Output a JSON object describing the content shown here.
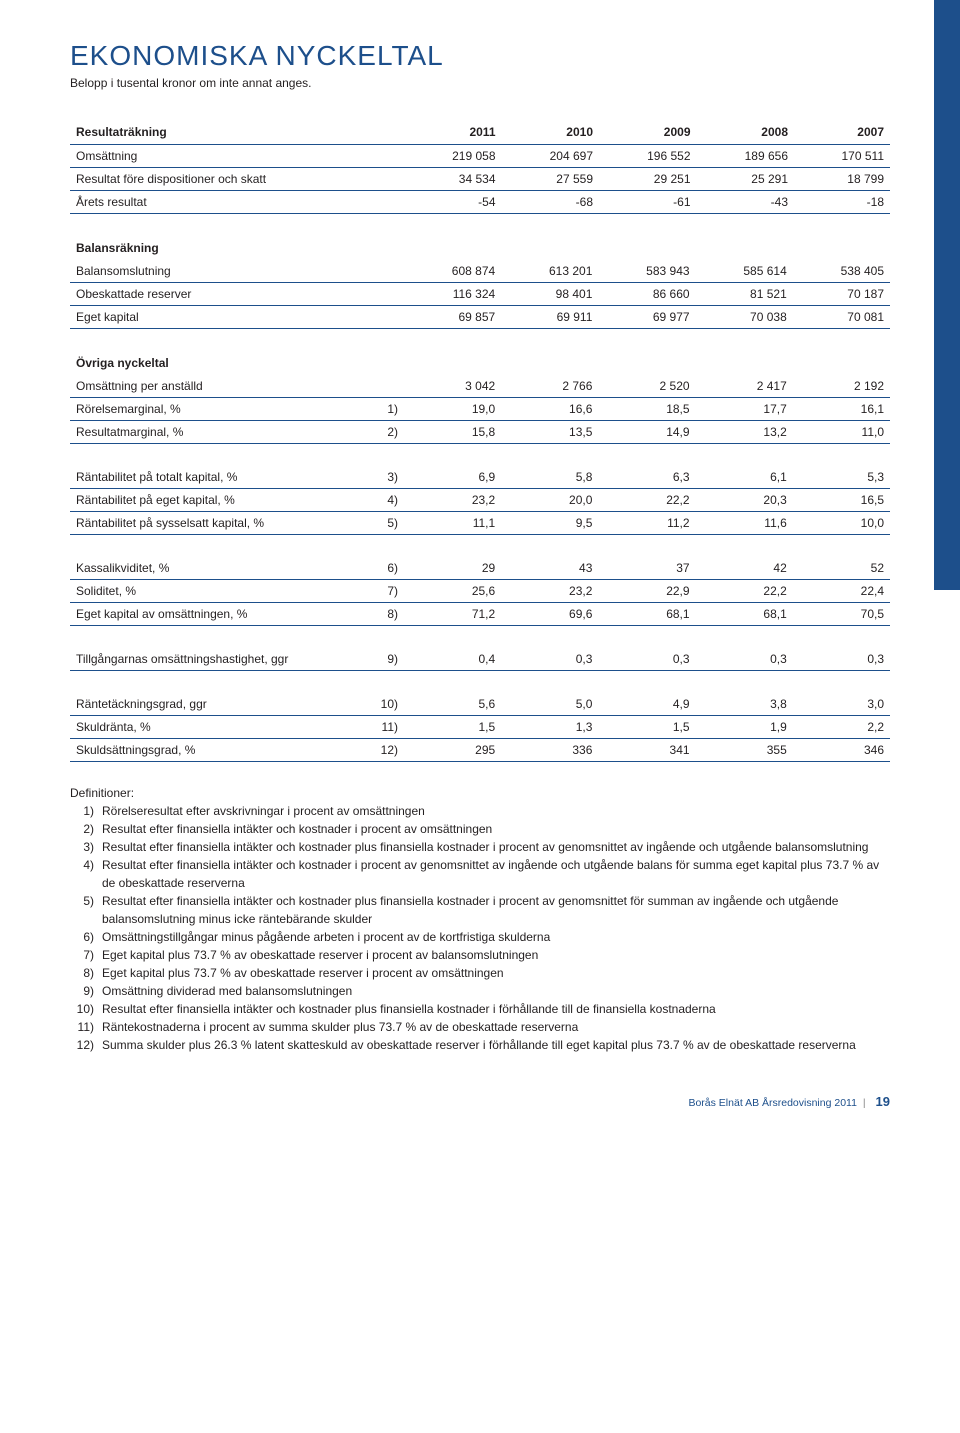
{
  "page": {
    "title": "EKONOMISKA NYCKELTAL",
    "subtitle": "Belopp i tusental kronor om inte annat anges."
  },
  "sections": {
    "resultatrakning": "Resultaträkning",
    "balansrakning": "Balansräkning",
    "ovriga": "Övriga nyckeltal"
  },
  "years": [
    "2011",
    "2010",
    "2009",
    "2008",
    "2007"
  ],
  "rows": {
    "oms": {
      "l": "Omsättning",
      "v": [
        "219 058",
        "204 697",
        "196 552",
        "189 656",
        "170 511"
      ]
    },
    "rfds": {
      "l": "Resultat före dispositioner och skatt",
      "v": [
        "34 534",
        "27 559",
        "29 251",
        "25 291",
        "18 799"
      ]
    },
    "arets": {
      "l": "Årets resultat",
      "v": [
        "-54",
        "-68",
        "-61",
        "-43",
        "-18"
      ]
    },
    "bslut": {
      "l": "Balansomslutning",
      "v": [
        "608 874",
        "613 201",
        "583 943",
        "585 614",
        "538 405"
      ]
    },
    "obres": {
      "l": "Obeskattade reserver",
      "v": [
        "116 324",
        "98 401",
        "86 660",
        "81 521",
        "70 187"
      ]
    },
    "egkap": {
      "l": "Eget kapital",
      "v": [
        "69 857",
        "69 911",
        "69 977",
        "70 038",
        "70 081"
      ]
    },
    "opa": {
      "l": "Omsättning per anställd",
      "v": [
        "3 042",
        "2 766",
        "2 520",
        "2 417",
        "2 192"
      ]
    },
    "rorm": {
      "l": "Rörelsemarginal, %",
      "n": "1)",
      "v": [
        "19,0",
        "16,6",
        "18,5",
        "17,7",
        "16,1"
      ]
    },
    "resm": {
      "l": "Resultatmarginal, %",
      "n": "2)",
      "v": [
        "15,8",
        "13,5",
        "14,9",
        "13,2",
        "11,0"
      ]
    },
    "rtot": {
      "l": "Räntabilitet på totalt kapital, %",
      "n": "3)",
      "v": [
        "6,9",
        "5,8",
        "6,3",
        "6,1",
        "5,3"
      ]
    },
    "reget": {
      "l": "Räntabilitet på eget kapital, %",
      "n": "4)",
      "v": [
        "23,2",
        "20,0",
        "22,2",
        "20,3",
        "16,5"
      ]
    },
    "rsys": {
      "l": "Räntabilitet på sysselsatt kapital, %",
      "n": "5)",
      "v": [
        "11,1",
        "9,5",
        "11,2",
        "11,6",
        "10,0"
      ]
    },
    "klik": {
      "l": "Kassalikviditet, %",
      "n": "6)",
      "v": [
        "29",
        "43",
        "37",
        "42",
        "52"
      ]
    },
    "sol": {
      "l": "Soliditet, %",
      "n": "7)",
      "v": [
        "25,6",
        "23,2",
        "22,9",
        "22,2",
        "22,4"
      ]
    },
    "ekoms": {
      "l": "Eget kapital av omsättningen, %",
      "n": "8)",
      "v": [
        "71,2",
        "69,6",
        "68,1",
        "68,1",
        "70,5"
      ]
    },
    "toh": {
      "l": "Tillgångarnas omsättningshastighet, ggr",
      "n": "9)",
      "v": [
        "0,4",
        "0,3",
        "0,3",
        "0,3",
        "0,3"
      ]
    },
    "rtg": {
      "l": "Räntetäckningsgrad, ggr",
      "n": "10)",
      "v": [
        "5,6",
        "5,0",
        "4,9",
        "3,8",
        "3,0"
      ]
    },
    "skr": {
      "l": "Skuldränta, %",
      "n": "11)",
      "v": [
        "1,5",
        "1,3",
        "1,5",
        "1,9",
        "2,2"
      ]
    },
    "ssg": {
      "l": "Skuldsättningsgrad, %",
      "n": "12)",
      "v": [
        "295",
        "336",
        "341",
        "355",
        "346"
      ]
    }
  },
  "defs": {
    "title": "Definitioner:",
    "items": [
      {
        "n": "1)",
        "t": "Rörelseresultat efter avskrivningar i procent av omsättningen"
      },
      {
        "n": "2)",
        "t": "Resultat efter finansiella intäkter och kostnader i procent av omsättningen"
      },
      {
        "n": "3)",
        "t": "Resultat efter finansiella intäkter och kostnader plus finansiella kostnader i procent av genomsnittet av ingående och utgående balansomslutning"
      },
      {
        "n": "4)",
        "t": "Resultat efter finansiella intäkter och kostnader i procent av genomsnittet av ingående och utgående balans för summa eget kapital plus 73.7 % av de obeskattade reserverna"
      },
      {
        "n": "5)",
        "t": "Resultat efter finansiella intäkter och kostnader plus finansiella kostnader i procent av genomsnittet för summan av ingående och utgående balansomslutning minus icke räntebärande  skulder"
      },
      {
        "n": "6)",
        "t": "Omsättningstillgångar minus pågående arbeten i procent av de kortfristiga skulderna"
      },
      {
        "n": "7)",
        "t": "Eget kapital plus 73.7 % av obeskattade reserver i procent av balansomslutningen"
      },
      {
        "n": "8)",
        "t": "Eget kapital plus 73.7 % av obeskattade reserver i procent av omsättningen"
      },
      {
        "n": "9)",
        "t": "Omsättning dividerad med balansomslutningen"
      },
      {
        "n": "10)",
        "t": "Resultat efter finansiella intäkter och kostnader plus finansiella kostnader i förhållande till de finansiella kostnaderna"
      },
      {
        "n": "11)",
        "t": "Räntekostnaderna i procent av summa skulder plus 73.7 % av de obeskattade reserverna"
      },
      {
        "n": "12)",
        "t": "Summa skulder plus 26.3 % latent skatteskuld av obeskattade reserver i förhållande till eget kapital plus 73.7 % av de obeskattade reserverna"
      }
    ]
  },
  "footer": {
    "text": "Borås Elnät AB Årsredovisning 2011",
    "page": "19"
  },
  "colors": {
    "accent": "#1d4f8b",
    "text": "#231f20",
    "bg": "#ffffff"
  }
}
